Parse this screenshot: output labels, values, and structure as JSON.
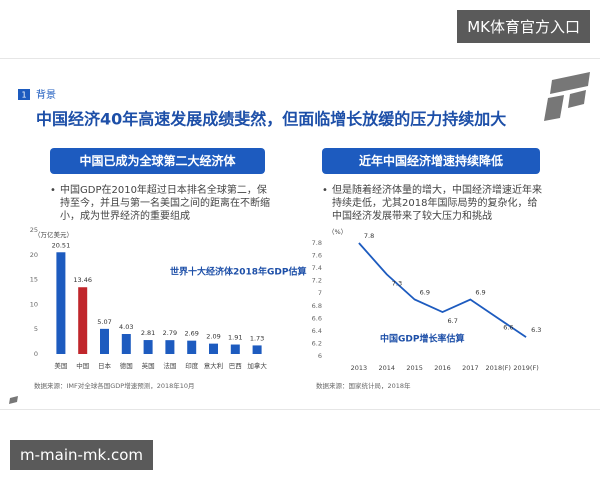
{
  "watermark_top": "MK体育官方入口",
  "section_number": "1",
  "section": "背景",
  "headline": "中国经济40年高速发展成绩斐然，但面临增长放缓的压力持续加大",
  "chart_data": [
    {
      "type": "bar",
      "title": "中国已成为全球第二大经济体",
      "bullet": "中国GDP在2010年超过日本排名全球第二，保持至今，并且与第一名美国之间的距离在不断缩小，成为世界经济的重要组成",
      "y_label": "（万亿美元）",
      "annotation": "世界十大经济体2018年GDP估算",
      "source": "数据来源：IMF对全球各国GDP增速预测，2018年10月",
      "categories": [
        "美国",
        "中国",
        "日本",
        "德国",
        "英国",
        "法国",
        "印度",
        "意大利",
        "巴西",
        "加拿大"
      ],
      "values": [
        20.51,
        13.46,
        5.07,
        4.03,
        2.81,
        2.79,
        2.69,
        2.09,
        1.91,
        1.73
      ],
      "colors": [
        "#1d5bbf",
        "#c0262b",
        "#1d5bbf",
        "#1d5bbf",
        "#1d5bbf",
        "#1d5bbf",
        "#1d5bbf",
        "#1d5bbf",
        "#1d5bbf",
        "#1d5bbf"
      ],
      "ylim": [
        0,
        25
      ],
      "yticks": [
        0,
        5,
        10,
        15,
        20,
        25
      ]
    },
    {
      "type": "line",
      "title": "近年中国经济增速持续降低",
      "bullet": "但是随着经济体量的增大，中国经济增速近年来持续走低，尤其2018年国际局势的复杂化，给中国经济发展带来了较大压力和挑战",
      "y_label": "（%）",
      "annotation": "中国GDP增长率估算",
      "source": "数据来源：国家统计局，2018年",
      "categories": [
        "2013",
        "2014",
        "2015",
        "2016",
        "2017",
        "2018(F)",
        "2019(F)"
      ],
      "values": [
        7.8,
        7.3,
        6.9,
        6.7,
        6.9,
        6.6,
        6.3
      ],
      "color": "#1d5bbf",
      "ylim": [
        6,
        7.8
      ],
      "yticks": [
        6,
        6.2,
        6.4,
        6.6,
        6.8,
        7,
        7.2,
        7.4,
        7.6,
        7.8
      ]
    }
  ],
  "watermark_bottom": "m-main-mk.com"
}
